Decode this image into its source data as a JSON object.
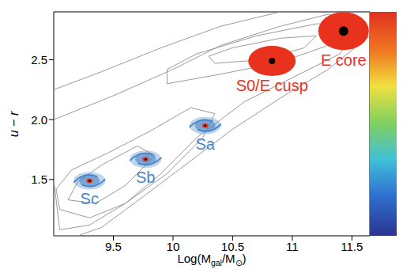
{
  "chart_data": {
    "type": "scatter",
    "x_label": "Log(Mgal/M⊙)",
    "y_label": "u − r",
    "xlim": [
      9.0,
      11.65
    ],
    "ylim": [
      1.03,
      2.9
    ],
    "xticks": [
      9.5,
      10,
      10.5,
      11,
      11.5
    ],
    "yticks": [
      1.5,
      {
        "value": 2,
        "label": "2.0"
      },
      2.5
    ],
    "galaxies": [
      {
        "label": "Sc",
        "x": 9.3,
        "y": 1.49,
        "marker": "spiral",
        "color": "#4a86c8"
      },
      {
        "label": "Sb",
        "x": 9.77,
        "y": 1.67,
        "marker": "spiral",
        "color": "#4a86c8"
      },
      {
        "label": "Sa",
        "x": 10.27,
        "y": 1.95,
        "marker": "spiral",
        "color": "#4a86c8"
      },
      {
        "label": "S0/E cusp",
        "x": 10.83,
        "y": 2.49,
        "marker": "lens",
        "color": "#e8321e"
      },
      {
        "label": "E core",
        "x": 11.43,
        "y": 2.74,
        "marker": "ellipse",
        "color": "#e8321e"
      }
    ],
    "contours": [
      {
        "color": "#9a9a9a",
        "x": [
          9.0,
          9.4,
          9.9,
          10.4,
          10.9,
          11.4,
          11.65,
          11.65,
          11.3,
          10.9,
          10.5,
          10.1,
          9.7,
          9.4,
          9.2,
          9.0
        ],
        "y": [
          2.25,
          2.4,
          2.6,
          2.78,
          2.9,
          2.95,
          2.95,
          2.7,
          2.42,
          2.18,
          1.92,
          1.62,
          1.32,
          1.1,
          1.03,
          1.03
        ]
      },
      {
        "color": "#9a9a9a",
        "x": [
          9.0,
          9.5,
          10.0,
          10.4,
          10.9,
          11.3,
          11.55,
          11.4,
          11.0,
          10.6,
          10.2,
          9.9,
          9.6,
          9.3,
          9.05,
          9.0
        ],
        "y": [
          2.0,
          2.2,
          2.42,
          2.62,
          2.78,
          2.88,
          2.8,
          2.55,
          2.35,
          2.15,
          1.85,
          1.55,
          1.3,
          1.12,
          1.08,
          1.5
        ]
      },
      {
        "color": "#9a9a9a",
        "x": [
          9.05,
          9.3,
          9.6,
          9.95,
          10.25,
          10.35,
          10.15,
          9.8,
          9.45,
          9.15,
          9.02
        ],
        "y": [
          1.25,
          1.18,
          1.3,
          1.55,
          1.85,
          2.05,
          2.1,
          1.9,
          1.72,
          1.58,
          1.42
        ]
      },
      {
        "color": "#9a9a9a",
        "x": [
          9.12,
          9.35,
          9.6,
          9.85,
          9.7,
          9.4,
          9.2
        ],
        "y": [
          1.33,
          1.3,
          1.45,
          1.7,
          1.78,
          1.62,
          1.48
        ]
      },
      {
        "color": "#9a9a9a",
        "x": [
          9.95,
          10.4,
          10.9,
          11.3,
          11.5,
          11.2,
          10.7,
          10.2,
          9.95
        ],
        "y": [
          2.3,
          2.38,
          2.48,
          2.62,
          2.8,
          2.8,
          2.7,
          2.55,
          2.42
        ]
      },
      {
        "color": "#9a9a9a",
        "x": [
          10.35,
          10.75,
          11.1,
          11.2,
          10.9,
          10.5,
          10.3
        ],
        "y": [
          2.47,
          2.5,
          2.6,
          2.7,
          2.68,
          2.6,
          2.53
        ]
      }
    ]
  }
}
